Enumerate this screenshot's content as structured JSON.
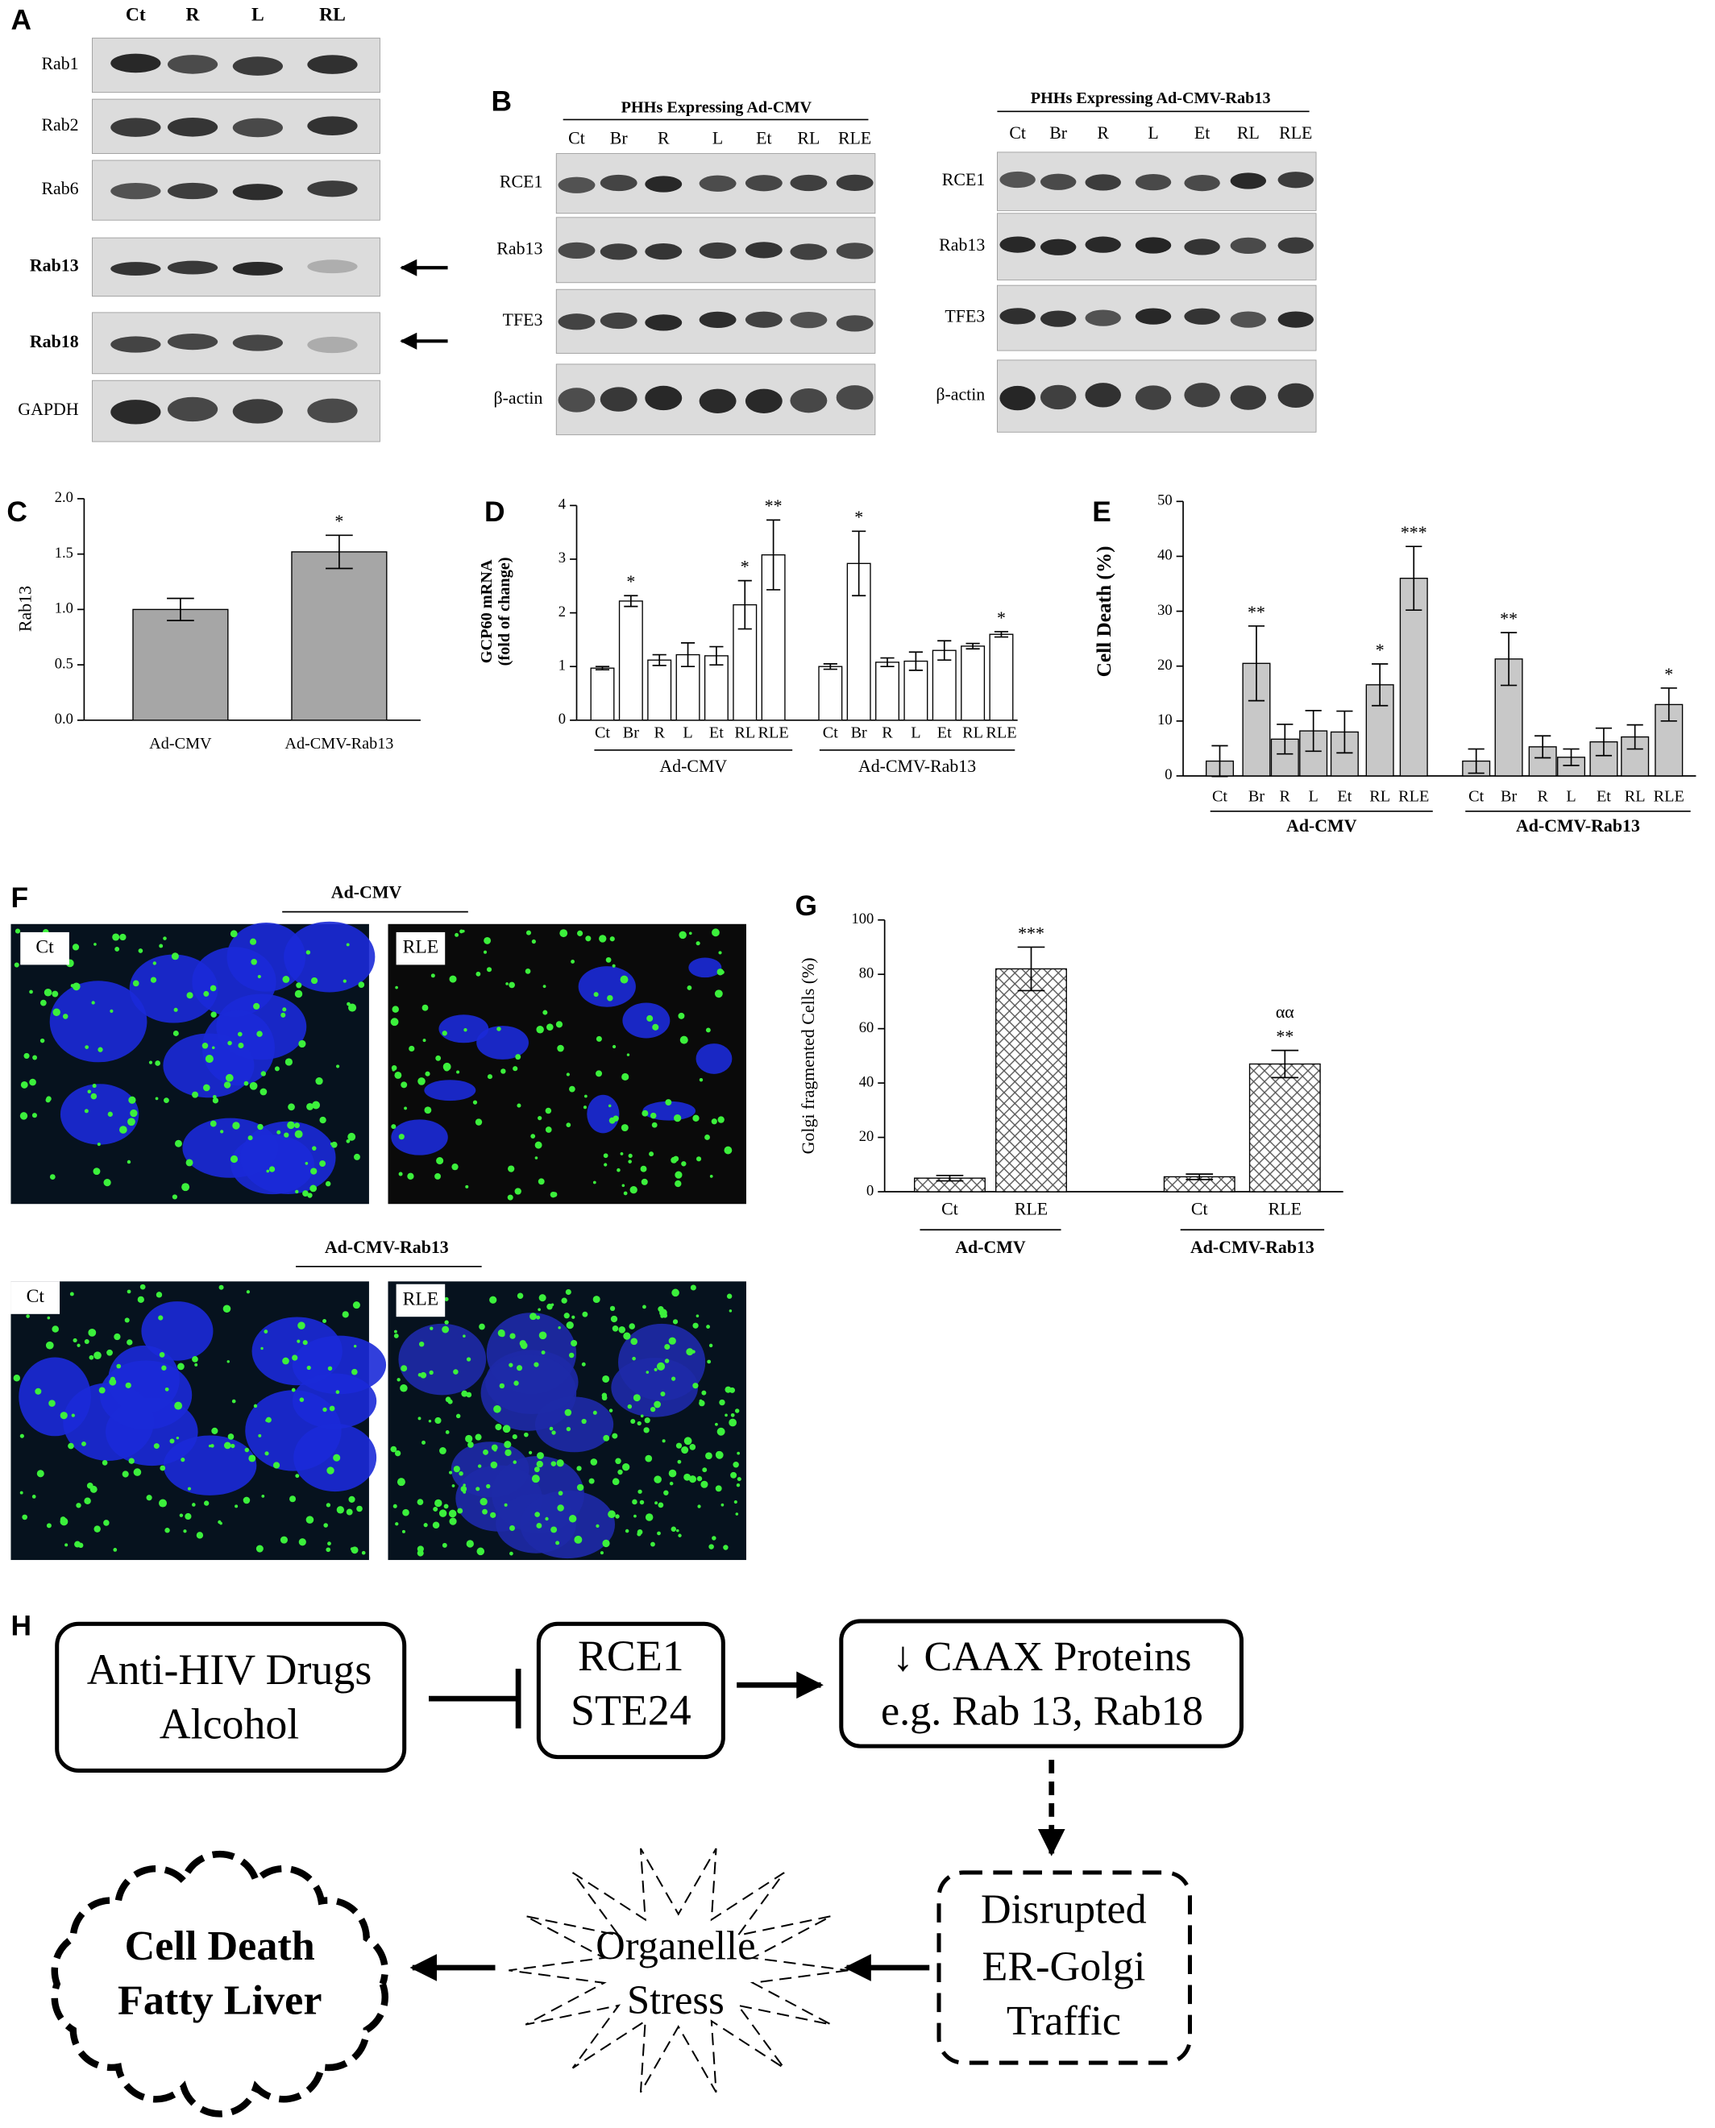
{
  "figure": {
    "panel_a": {
      "letter": "A",
      "lanes": [
        "Ct",
        "R",
        "L",
        "RL"
      ],
      "rows": [
        "Rab1",
        "Rab2",
        "Rab6",
        "Rab13",
        "Rab18",
        "GAPDH"
      ]
    },
    "panel_b": {
      "letter": "B",
      "groups": [
        {
          "title": "PHHs Expressing Ad-CMV",
          "lanes": [
            "Ct",
            "Br",
            "R",
            "L",
            "Et",
            "RL",
            "RLE"
          ],
          "rows": [
            "RCE1",
            "Rab13",
            "TFE3",
            "β-actin"
          ]
        },
        {
          "title": "PHHs Expressing Ad-CMV-Rab13",
          "lanes": [
            "Ct",
            "Br",
            "R",
            "L",
            "Et",
            "RL",
            "RLE"
          ],
          "rows": [
            "RCE1",
            "Rab13",
            "TFE3",
            "β-actin"
          ]
        }
      ]
    },
    "panel_f": {
      "letter": "F",
      "groups": [
        {
          "name": "Ad-CMV",
          "images": [
            "Ct",
            "RLE"
          ]
        },
        {
          "name": "Ad-CMV-Rab13",
          "images": [
            "Ct",
            "RLE"
          ]
        }
      ]
    },
    "panel_h": {
      "letter": "H",
      "nodes": [
        {
          "lines": [
            "Anti-HIV Drugs",
            "Alcohol"
          ]
        },
        {
          "lines": [
            "RCE1",
            "STE24"
          ]
        },
        {
          "lines": [
            "↓ CAAX Proteins",
            "e.g. Rab 13, Rab18"
          ]
        },
        {
          "lines": [
            "Disrupted",
            "ER-Golgi",
            "Traffic"
          ]
        },
        {
          "lines": [
            "Organelle",
            "Stress"
          ]
        },
        {
          "lines": [
            "Cell Death",
            "Fatty Liver"
          ]
        }
      ]
    }
  },
  "chart_data": [
    {
      "type": "bar",
      "panel": "C",
      "ylabel": [
        "Rab13"
      ],
      "categories": [
        "Ad-CMV",
        "Ad-CMV-Rab13"
      ],
      "values": [
        1.0,
        1.52
      ],
      "errors": [
        0.1,
        0.15
      ],
      "significance": [
        null,
        "*"
      ],
      "color": "#a6a6a6",
      "ylim": [
        0,
        2
      ],
      "yticks": [
        {
          "value": 0,
          "label": "0.0"
        },
        {
          "value": 0.5,
          "label": "0.5"
        },
        {
          "value": 1,
          "label": "1.0"
        },
        {
          "value": 1.5,
          "label": "1.5"
        },
        {
          "value": 2,
          "label": "2.0"
        }
      ]
    },
    {
      "type": "bar",
      "panel": "D",
      "ylabel": [
        "GCP60 mRNA",
        "(fold of change)"
      ],
      "categories": [
        "Ct",
        "Br",
        "R",
        "L",
        "Et",
        "RL",
        "RLE",
        "Ct",
        "Br",
        "R",
        "L",
        "Et",
        "RL",
        "RLE"
      ],
      "groups": [
        {
          "name": "Ad-CMV"
        },
        {
          "name": "Ad-CMV-Rab13"
        }
      ],
      "values": [
        0.97,
        2.22,
        1.12,
        1.22,
        1.2,
        2.15,
        3.08,
        1.0,
        2.92,
        1.08,
        1.1,
        1.3,
        1.38,
        1.6
      ],
      "errors": [
        0.03,
        0.1,
        0.1,
        0.22,
        0.17,
        0.45,
        0.65,
        0.05,
        0.6,
        0.08,
        0.17,
        0.18,
        0.05,
        0.05
      ],
      "significance": [
        null,
        "*",
        null,
        null,
        null,
        "*",
        "**",
        null,
        "*",
        null,
        null,
        null,
        null,
        "*"
      ],
      "color": "#ffffff",
      "ylim": [
        0,
        4
      ],
      "yticks": [
        0,
        1,
        2,
        3,
        4
      ]
    },
    {
      "type": "bar",
      "panel": "E",
      "ylabel": [
        "Cell Death (%)"
      ],
      "categories": [
        "Ct",
        "Br",
        "R",
        "L",
        "Et",
        "RL",
        "RLE",
        "Ct",
        "Br",
        "R",
        "L",
        "Et",
        "RL",
        "RLE"
      ],
      "groups": [
        {
          "name": "Ad-CMV"
        },
        {
          "name": "Ad-CMV-Rab13"
        }
      ],
      "values": [
        2.7,
        20.5,
        6.7,
        8.2,
        8,
        16.6,
        36,
        2.7,
        21.3,
        5.3,
        3.4,
        6.2,
        7.1,
        13
      ],
      "errors": [
        2.8,
        6.8,
        2.7,
        3.7,
        3.8,
        3.8,
        5.8,
        2.2,
        4.8,
        2,
        1.5,
        2.5,
        2.2,
        3
      ],
      "significance": [
        null,
        "**",
        null,
        null,
        null,
        "*",
        "***",
        null,
        "**",
        null,
        null,
        null,
        null,
        "*"
      ],
      "color": "#c8c8c8",
      "ylim": [
        0,
        50
      ],
      "yticks": [
        0,
        10,
        20,
        30,
        40,
        50
      ]
    },
    {
      "type": "bar",
      "panel": "G",
      "ylabel": [
        "Golgi fragmented Cells (%)"
      ],
      "categories": [
        "Ct",
        "RLE",
        "Ct",
        "RLE"
      ],
      "groups": [
        {
          "name": "Ad-CMV"
        },
        {
          "name": "Ad-CMV-Rab13"
        }
      ],
      "values": [
        5,
        82,
        5.5,
        47
      ],
      "errors": [
        1,
        8,
        1,
        5
      ],
      "significance": [
        null,
        "***",
        null,
        "**"
      ],
      "second_marks": [
        null,
        null,
        null,
        "αα"
      ],
      "color": "#ffffff",
      "ylim": [
        0,
        100
      ],
      "yticks": [
        0,
        20,
        40,
        60,
        80,
        100
      ]
    }
  ]
}
